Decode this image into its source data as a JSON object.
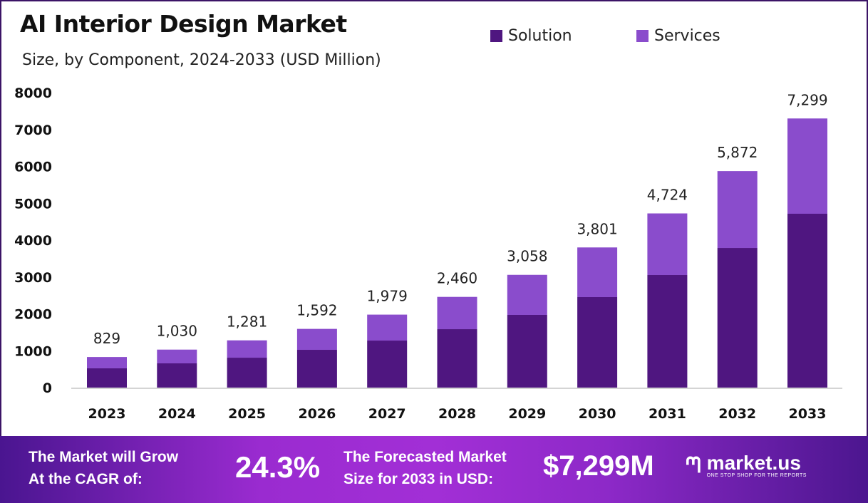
{
  "chart_data": {
    "type": "bar",
    "stacked": true,
    "title": "AI Interior Design Market",
    "subtitle": "Size, by Component, 2024-2033 (USD Million)",
    "categories": [
      "2023",
      "2024",
      "2025",
      "2026",
      "2027",
      "2028",
      "2029",
      "2030",
      "2031",
      "2032",
      "2033"
    ],
    "series": [
      {
        "name": "Solution",
        "color": "#4f1680",
        "values": [
          522,
          657,
          811,
          1024,
          1275,
          1584,
          1971,
          2454,
          3053,
          3787,
          4715
        ]
      },
      {
        "name": "Services",
        "color": "#8a4ccc",
        "values": [
          307,
          373,
          470,
          568,
          704,
          876,
          1087,
          1347,
          1671,
          2085,
          2584
        ]
      }
    ],
    "totals": [
      "829",
      "1,030",
      "1,281",
      "1,592",
      "1,979",
      "2,460",
      "3,058",
      "3,801",
      "4,724",
      "5,872",
      "7,299"
    ],
    "total_values": [
      829,
      1030,
      1281,
      1592,
      1979,
      2460,
      3058,
      3801,
      4724,
      5872,
      7299
    ],
    "yticks": [
      "0",
      "1000",
      "2000",
      "3000",
      "4000",
      "5000",
      "6000",
      "7000",
      "8000"
    ],
    "ylim": [
      0,
      8000
    ],
    "grid": false,
    "legend_position": "top-right"
  },
  "footer": {
    "cagr_label_line1": "The Market will Grow",
    "cagr_label_line2": "At the CAGR of:",
    "cagr_value": "24.3%",
    "forecast_label_line1": "The Forecasted Market",
    "forecast_label_line2": "Size for 2033 in USD:",
    "forecast_value": "$7,299M",
    "logo_name": "market.us",
    "logo_tagline": "ONE STOP SHOP FOR THE REPORTS"
  }
}
